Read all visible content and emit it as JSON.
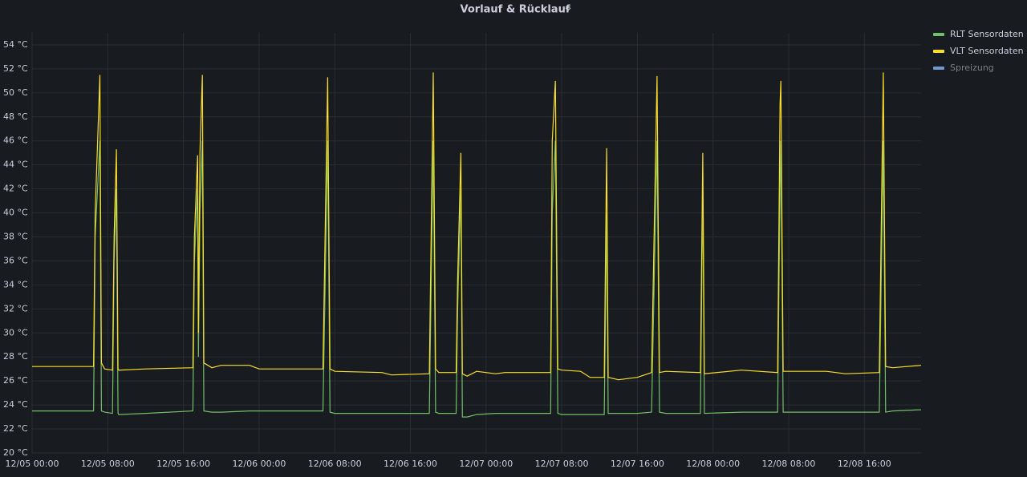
{
  "chart_data": {
    "type": "line",
    "title": "Vorlauf & Rücklauf",
    "x": [
      "12/05 00:00",
      "12/05 06:30",
      "12/05 06:40",
      "12/05 07:10",
      "12/05 07:20",
      "12/05 07:40",
      "12/05 08:30",
      "12/05 08:40",
      "12/05 08:55",
      "12/05 09:05",
      "12/05 09:10",
      "12/05 12:00",
      "12/05 17:00",
      "12/05 17:10",
      "12/05 17:30",
      "12/05 17:35",
      "12/05 17:45",
      "12/05 18:00",
      "12/05 18:10",
      "12/05 19:00",
      "12/05 20:00",
      "12/05 23:00",
      "12/06 00:00",
      "12/06 06:45",
      "12/06 07:15",
      "12/06 07:30",
      "12/06 08:00",
      "12/06 13:00",
      "12/06 14:00",
      "12/06 18:00",
      "12/06 18:25",
      "12/06 18:40",
      "12/06 19:00",
      "12/06 20:50",
      "12/06 21:00",
      "12/06 21:20",
      "12/06 21:30",
      "12/06 22:00",
      "12/06 23:00",
      "12/07 01:00",
      "12/07 02:00",
      "12/07 06:50",
      "12/07 07:00",
      "12/07 07:20",
      "12/07 07:35",
      "12/07 08:00",
      "12/07 10:00",
      "12/07 11:00",
      "12/07 12:30",
      "12/07 12:45",
      "12/07 12:55",
      "12/07 14:00",
      "12/07 16:00",
      "12/07 17:30",
      "12/07 18:05",
      "12/07 18:20",
      "12/07 19:00",
      "12/07 22:40",
      "12/07 22:55",
      "12/07 23:05",
      "12/08 03:00",
      "12/08 06:50",
      "12/08 07:05",
      "12/08 07:10",
      "12/08 07:25",
      "12/08 08:00",
      "12/08 12:00",
      "12/08 14:00",
      "12/08 17:35",
      "12/08 18:00",
      "12/08 18:15",
      "12/08 19:00",
      "12/08 22:00"
    ],
    "series": [
      {
        "name": "RLT Sensordaten",
        "color": "#73bf69",
        "values": [
          23.5,
          23.5,
          38,
          46,
          23.5,
          23.4,
          23.3,
          36,
          42,
          23.3,
          23.2,
          23.3,
          23.5,
          36,
          42,
          28,
          40,
          46,
          23.5,
          23.4,
          23.4,
          23.5,
          23.5,
          23.5,
          46,
          23.4,
          23.3,
          23.3,
          23.3,
          23.3,
          46,
          23.4,
          23.3,
          23.3,
          32,
          42,
          23.0,
          23.0,
          23.2,
          23.3,
          23.3,
          23.3,
          40,
          46,
          23.3,
          23.2,
          23.2,
          23.2,
          23.2,
          40,
          23.3,
          23.3,
          23.3,
          23.4,
          46,
          23.4,
          23.3,
          23.3,
          42,
          23.3,
          23.4,
          23.4,
          42,
          46,
          23.4,
          23.4,
          23.4,
          23.4,
          23.4,
          46,
          23.4,
          23.5,
          23.6
        ]
      },
      {
        "name": "VLT Sensordaten",
        "color": "#fade2a",
        "values": [
          27.2,
          27.2,
          40,
          51.5,
          27.5,
          27.0,
          26.9,
          38,
          45.3,
          27,
          26.9,
          27.0,
          27.1,
          38,
          44.8,
          30,
          45,
          51.5,
          27.5,
          27.1,
          27.3,
          27.3,
          27.0,
          27.0,
          51.3,
          27.0,
          26.8,
          26.7,
          26.5,
          26.6,
          51.7,
          27,
          26.7,
          26.7,
          34.5,
          45,
          26.6,
          26.4,
          26.8,
          26.6,
          26.7,
          26.7,
          46,
          51,
          27,
          26.9,
          26.8,
          26.3,
          26.3,
          45.4,
          26.3,
          26.1,
          26.3,
          26.7,
          51.4,
          26.7,
          26.8,
          26.7,
          45,
          26.6,
          26.9,
          26.7,
          49,
          51,
          26.8,
          26.8,
          26.8,
          26.6,
          26.7,
          51.7,
          27.2,
          27.1,
          27.3
        ]
      },
      {
        "name": "Spreizung",
        "color": "#8ab8ff",
        "hidden": true,
        "values": [
          null,
          null,
          null,
          null,
          null,
          null,
          null,
          null,
          null,
          null,
          null,
          null,
          null,
          null,
          null,
          null,
          null,
          null,
          null,
          null,
          null,
          null,
          null,
          null,
          null,
          null,
          null,
          null,
          null,
          null,
          null,
          null,
          null,
          null,
          null,
          null,
          null,
          null,
          null,
          null,
          null,
          null,
          null,
          null,
          null,
          null,
          null,
          null,
          null,
          null,
          null,
          null,
          null,
          null,
          null,
          null,
          null,
          null,
          null,
          null,
          null,
          null,
          null,
          null,
          null,
          null,
          null,
          null,
          null,
          null,
          null,
          null,
          null
        ]
      }
    ],
    "xlim": [
      "12/05 00:00",
      "12/08 22:00"
    ],
    "xticks": [
      "12/05 00:00",
      "12/05 08:00",
      "12/05 16:00",
      "12/06 00:00",
      "12/06 08:00",
      "12/06 16:00",
      "12/07 00:00",
      "12/07 08:00",
      "12/07 16:00",
      "12/08 00:00",
      "12/08 08:00",
      "12/08 16:00"
    ],
    "ylim": [
      20,
      55
    ],
    "yticks": [
      {
        "value": 20,
        "label": "20 °C"
      },
      {
        "value": 22,
        "label": "22 °C"
      },
      {
        "value": 24,
        "label": "24 °C"
      },
      {
        "value": 26,
        "label": "26 °C"
      },
      {
        "value": 28,
        "label": "28 °C"
      },
      {
        "value": 30,
        "label": "30 °C"
      },
      {
        "value": 32,
        "label": "32 °C"
      },
      {
        "value": 34,
        "label": "34 °C"
      },
      {
        "value": 36,
        "label": "36 °C"
      },
      {
        "value": 38,
        "label": "38 °C"
      },
      {
        "value": 40,
        "label": "40 °C"
      },
      {
        "value": 42,
        "label": "42 °C"
      },
      {
        "value": 44,
        "label": "44 °C"
      },
      {
        "value": 46,
        "label": "46 °C"
      },
      {
        "value": 48,
        "label": "48 °C"
      },
      {
        "value": 50,
        "label": "50 °C"
      },
      {
        "value": 52,
        "label": "52 °C"
      },
      {
        "value": 54,
        "label": "54 °C"
      }
    ],
    "grid": true,
    "legend": "right"
  }
}
